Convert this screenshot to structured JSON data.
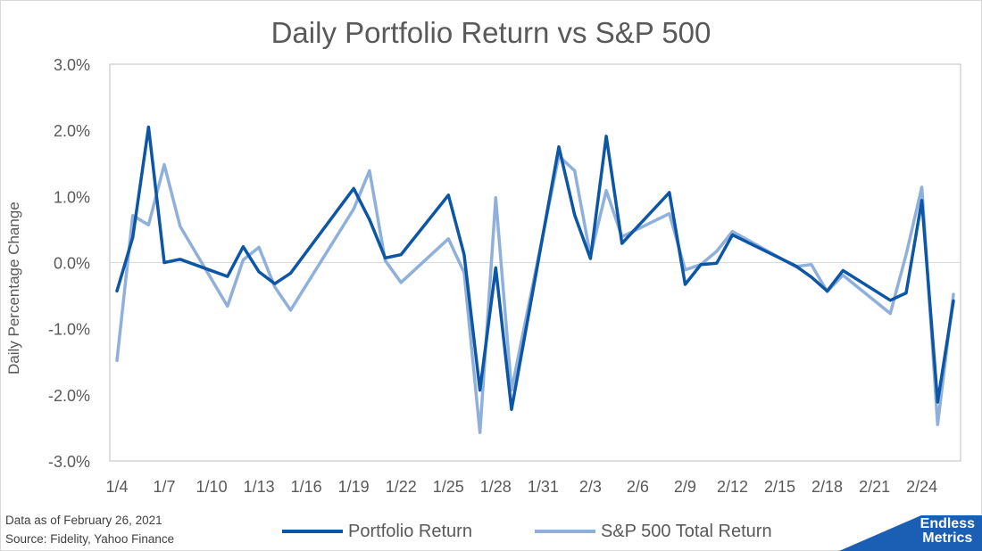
{
  "chart_data": {
    "type": "line",
    "title": "Daily Portfolio Return vs S&P 500",
    "ylabel": "Daily Percentage Change",
    "ylim": [
      -3.0,
      3.0
    ],
    "yticks": [
      3.0,
      2.0,
      1.0,
      0.0,
      -1.0,
      -2.0,
      -3.0
    ],
    "ytick_labels": [
      "3.0%",
      "2.0%",
      "1.0%",
      "0.0%",
      "-1.0%",
      "-2.0%",
      "-3.0%"
    ],
    "xlim": [
      "2021-01-04",
      "2021-02-26"
    ],
    "xtick_labels": [
      "1/4",
      "1/7",
      "1/10",
      "1/13",
      "1/16",
      "1/19",
      "1/22",
      "1/25",
      "1/28",
      "1/31",
      "2/3",
      "2/6",
      "2/9",
      "2/12",
      "2/15",
      "2/18",
      "2/21",
      "2/24"
    ],
    "x": [
      "2021-01-04",
      "2021-01-05",
      "2021-01-06",
      "2021-01-07",
      "2021-01-08",
      "2021-01-11",
      "2021-01-12",
      "2021-01-13",
      "2021-01-14",
      "2021-01-15",
      "2021-01-19",
      "2021-01-20",
      "2021-01-21",
      "2021-01-22",
      "2021-01-25",
      "2021-01-26",
      "2021-01-27",
      "2021-01-28",
      "2021-01-29",
      "2021-02-01",
      "2021-02-02",
      "2021-02-03",
      "2021-02-04",
      "2021-02-05",
      "2021-02-08",
      "2021-02-09",
      "2021-02-10",
      "2021-02-11",
      "2021-02-12",
      "2021-02-16",
      "2021-02-17",
      "2021-02-18",
      "2021-02-19",
      "2021-02-22",
      "2021-02-23",
      "2021-02-24",
      "2021-02-25",
      "2021-02-26"
    ],
    "series": [
      {
        "name": "Portfolio Return",
        "color": "#0d56a6",
        "values": [
          -0.43,
          0.38,
          2.05,
          0.0,
          0.05,
          -0.21,
          0.24,
          -0.14,
          -0.32,
          -0.16,
          1.12,
          0.65,
          0.07,
          0.12,
          1.02,
          0.12,
          -1.93,
          -0.08,
          -2.22,
          1.75,
          0.72,
          0.06,
          1.91,
          0.29,
          1.06,
          -0.33,
          -0.03,
          -0.01,
          0.42,
          -0.05,
          -0.22,
          -0.43,
          -0.12,
          -0.57,
          -0.46,
          0.94,
          -2.11,
          -0.58
        ]
      },
      {
        "name": "S&P 500 Total Return",
        "color": "#8eb0db",
        "values": [
          -1.48,
          0.71,
          0.57,
          1.48,
          0.55,
          -0.66,
          0.04,
          0.23,
          -0.37,
          -0.72,
          0.81,
          1.39,
          0.03,
          -0.3,
          0.36,
          -0.15,
          -2.57,
          0.98,
          -1.93,
          1.61,
          1.39,
          0.1,
          1.09,
          0.39,
          0.74,
          -0.11,
          -0.03,
          0.17,
          0.47,
          -0.06,
          -0.03,
          -0.44,
          -0.19,
          -0.77,
          0.12,
          1.14,
          -2.45,
          -0.48
        ]
      }
    ]
  },
  "footnote": {
    "line1": "Data as of February 26, 2021",
    "line2": "Source: Fidelity, Yahoo Finance"
  },
  "legend": {
    "items": [
      "Portfolio Return",
      "S&P 500 Total Return"
    ]
  },
  "brand": {
    "line1": "Endless",
    "line2": "Metrics",
    "color": "#1a5fb4"
  }
}
